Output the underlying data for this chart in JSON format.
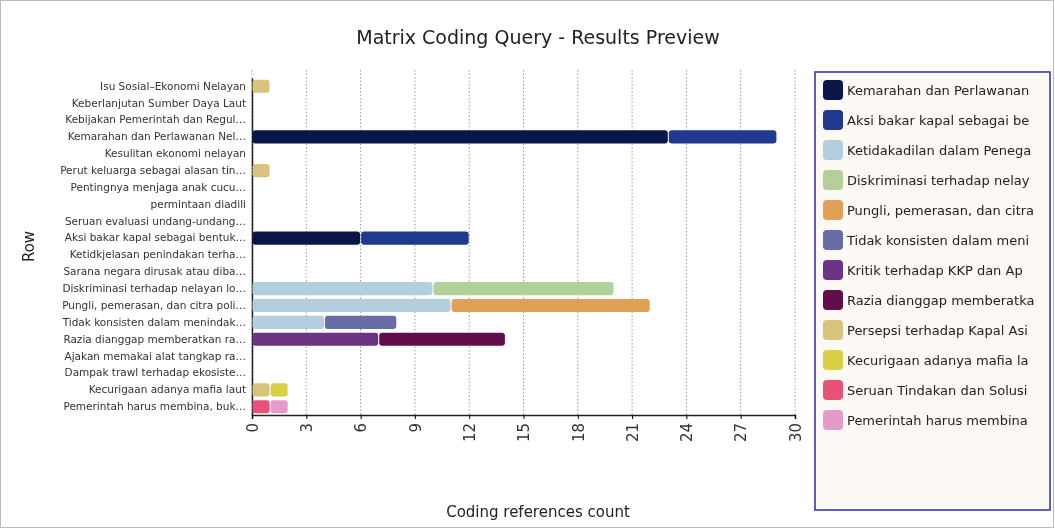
{
  "chart_data": {
    "type": "bar",
    "orientation": "horizontal",
    "stacked": true,
    "title": "Matrix Coding Query - Results Preview",
    "xlabel": "Coding references count",
    "ylabel": "Row",
    "categories": [
      "Isu Sosial–Ekonomi Nelayan",
      "Keberlanjutan Sumber Daya Laut",
      "Kebijakan Pemerintah dan Regul…",
      "Kemarahan dan Perlawanan Nel…",
      "Kesulitan ekonomi nelayan",
      "Perut keluarga sebagai alasan tin…",
      "Pentingnya menjaga anak cucu…",
      "permintaan diadili",
      "Seruan evaluasi undang-undang…",
      "Aksi bakar kapal sebagai bentuk…",
      "Ketidkjelasan penindakan terha…",
      "Sarana negara dirusak  atau diba…",
      "Diskriminasi terhadap nelayan lo…",
      "Pungli, pemerasan, dan citra poli…",
      "Tidak konsisten dalam menindak…",
      "Razia dianggap memberatkan ra…",
      "Ajakan memakai alat tangkap ra…",
      "Dampak trawl terhadap ekosiste…",
      "Kecurigaan adanya mafia laut",
      "Pemerintah harus membina, buk…"
    ],
    "series": [
      {
        "name": "Kemarahan dan Perlawanan",
        "color": "#0b1648",
        "values": [
          null,
          null,
          null,
          23,
          null,
          null,
          null,
          null,
          null,
          6,
          null,
          null,
          null,
          null,
          null,
          null,
          null,
          null,
          null,
          null
        ]
      },
      {
        "name": "Aksi bakar kapal sebagai be",
        "color": "#1f3990",
        "values": [
          null,
          null,
          null,
          6,
          null,
          null,
          null,
          null,
          null,
          6,
          null,
          null,
          null,
          null,
          null,
          null,
          null,
          null,
          null,
          null
        ]
      },
      {
        "name": "Ketidakadilan dalam Penega",
        "color": "#b3cfdf",
        "values": [
          null,
          null,
          null,
          null,
          null,
          null,
          null,
          null,
          null,
          null,
          null,
          null,
          10,
          11,
          4,
          null,
          null,
          null,
          null,
          null
        ]
      },
      {
        "name": "Diskriminasi terhadap nelay",
        "color": "#b3d09a",
        "values": [
          null,
          null,
          null,
          null,
          null,
          null,
          null,
          null,
          null,
          null,
          null,
          null,
          10,
          null,
          null,
          null,
          null,
          null,
          null,
          null
        ]
      },
      {
        "name": "Pungli, pemerasan, dan citra",
        "color": "#e0a055",
        "values": [
          null,
          null,
          null,
          null,
          null,
          null,
          null,
          null,
          null,
          null,
          null,
          null,
          null,
          11,
          null,
          null,
          null,
          null,
          null,
          null
        ]
      },
      {
        "name": "Tidak konsisten dalam meni",
        "color": "#6a6ca5",
        "values": [
          null,
          null,
          null,
          null,
          null,
          null,
          null,
          null,
          null,
          null,
          null,
          null,
          null,
          null,
          4,
          null,
          null,
          null,
          null,
          null
        ]
      },
      {
        "name": "Kritik terhadap KKP dan Ap",
        "color": "#6b3583",
        "values": [
          null,
          null,
          null,
          null,
          null,
          null,
          null,
          null,
          null,
          null,
          null,
          null,
          null,
          null,
          null,
          7,
          null,
          null,
          null,
          null
        ]
      },
      {
        "name": "Razia dianggap memberatka",
        "color": "#620e4b",
        "values": [
          null,
          null,
          null,
          null,
          null,
          null,
          null,
          null,
          null,
          null,
          null,
          null,
          null,
          null,
          null,
          7,
          null,
          null,
          null,
          null
        ]
      },
      {
        "name": "Persepsi terhadap Kapal Asi",
        "color": "#d8c47e",
        "values": [
          1,
          null,
          null,
          null,
          null,
          1,
          null,
          null,
          null,
          null,
          null,
          null,
          null,
          null,
          null,
          null,
          null,
          null,
          1,
          null
        ]
      },
      {
        "name": "Kecurigaan adanya mafia la",
        "color": "#d9cf45",
        "values": [
          null,
          null,
          null,
          null,
          null,
          null,
          null,
          null,
          null,
          null,
          null,
          null,
          null,
          null,
          null,
          null,
          null,
          null,
          1,
          null
        ]
      },
      {
        "name": "Seruan Tindakan dan Solusi",
        "color": "#e8517a",
        "values": [
          null,
          null,
          null,
          null,
          null,
          null,
          null,
          null,
          null,
          null,
          null,
          null,
          null,
          null,
          null,
          null,
          null,
          null,
          null,
          1
        ]
      },
      {
        "name": "Pemerintah harus membina",
        "color": "#e59ac8",
        "values": [
          null,
          null,
          null,
          null,
          null,
          null,
          null,
          null,
          null,
          null,
          null,
          null,
          null,
          null,
          null,
          null,
          null,
          null,
          null,
          1
        ]
      }
    ],
    "xlim": [
      0,
      30
    ],
    "xticks": [
      0,
      3,
      6,
      9,
      12,
      15,
      18,
      21,
      24,
      27,
      30
    ],
    "grid": "x",
    "legend": "right"
  }
}
